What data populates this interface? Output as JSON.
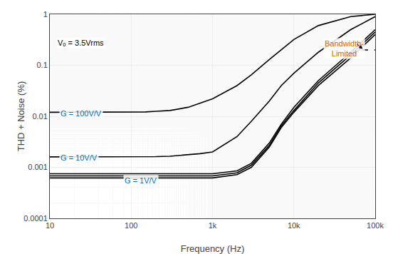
{
  "chart_data": {
    "type": "line",
    "log": true,
    "grid": true,
    "xlabel": "Frequency (Hz)",
    "ylabel": "THD + Noise (%)",
    "xlim": [
      10,
      100000
    ],
    "ylim": [
      0.0001,
      1
    ],
    "xticks": [
      10,
      100,
      {
        "value": 1000,
        "label": "1k"
      },
      {
        "value": 10000,
        "label": "10k"
      },
      {
        "value": 100000,
        "label": "100k"
      }
    ],
    "yticks": [
      0.0001,
      0.001,
      0.01,
      0.1,
      1
    ],
    "series": [
      {
        "color": "#000000",
        "line_style": "solid",
        "x": [
          10,
          20,
          30,
          50,
          70,
          100,
          150,
          200,
          300,
          500,
          700,
          1000,
          2000,
          3000,
          5000,
          7000,
          10000,
          20000,
          50000,
          100000
        ],
        "values": [
          0.012,
          0.012,
          0.012,
          0.012,
          0.012,
          0.012,
          0.0122,
          0.0125,
          0.013,
          0.015,
          0.018,
          0.022,
          0.04,
          0.065,
          0.13,
          0.2,
          0.32,
          0.6,
          0.9,
          1.0
        ]
      },
      {
        "color": "#000000",
        "line_style": "solid",
        "x": [
          10,
          20,
          50,
          100,
          200,
          300,
          500,
          700,
          1000,
          2000,
          3000,
          5000,
          7000,
          10000,
          20000,
          50000,
          100000
        ],
        "values": [
          0.0016,
          0.0016,
          0.0016,
          0.0016,
          0.00162,
          0.00165,
          0.00175,
          0.00185,
          0.002,
          0.004,
          0.008,
          0.02,
          0.04,
          0.07,
          0.18,
          0.5,
          0.9
        ]
      },
      {
        "color": "#000000",
        "line_style": "solid",
        "x": [
          10,
          50,
          100,
          200,
          300,
          500,
          700,
          1000,
          2000,
          3000,
          5000,
          7000,
          10000,
          20000,
          50000,
          100000
        ],
        "values": [
          0.00075,
          0.00075,
          0.00075,
          0.00075,
          0.00075,
          0.00075,
          0.00075,
          0.00075,
          0.00085,
          0.0012,
          0.003,
          0.007,
          0.015,
          0.05,
          0.18,
          0.5
        ]
      },
      {
        "color": "#000000",
        "line_style": "solid",
        "x": [
          10,
          50,
          100,
          200,
          300,
          500,
          700,
          1000,
          2000,
          3000,
          5000,
          7000,
          10000,
          20000,
          50000,
          100000
        ],
        "values": [
          0.00068,
          0.00068,
          0.00068,
          0.00068,
          0.00068,
          0.00068,
          0.00068,
          0.00068,
          0.00078,
          0.0011,
          0.0027,
          0.0065,
          0.013,
          0.045,
          0.16,
          0.45
        ]
      },
      {
        "color": "#000000",
        "line_style": "solid",
        "x": [
          10,
          50,
          100,
          200,
          300,
          500,
          700,
          1000,
          2000,
          3000,
          5000,
          7000,
          10000,
          20000,
          50000,
          100000
        ],
        "values": [
          0.00062,
          0.00062,
          0.00062,
          0.00062,
          0.00062,
          0.00062,
          0.00062,
          0.00062,
          0.00072,
          0.001,
          0.0025,
          0.006,
          0.012,
          0.04,
          0.14,
          0.4
        ]
      },
      {
        "color": "#000000",
        "line_style": "dashed",
        "x": [
          68000,
          100000
        ],
        "values": [
          0.2,
          0.2
        ]
      }
    ],
    "annotations": [
      {
        "text": "Vₒ = 3.5Vrms",
        "x": 12,
        "y": 0.28,
        "color": "#000000"
      },
      {
        "text": "Bandwidth-\nLimited",
        "x": 42000,
        "y": 0.35,
        "color": "#CC6600"
      },
      {
        "text": "G = 100V/V",
        "x": 13,
        "y": 0.0115,
        "color": "#0070C0"
      },
      {
        "text": "G = 10V/V",
        "x": 13,
        "y": 0.00155,
        "color": "#0070C0"
      },
      {
        "text": "G = 1V/V",
        "x": 80,
        "y": 0.00056,
        "color": "#0070C0"
      }
    ],
    "arrows": [
      {
        "x": 70000,
        "y": 0.21,
        "from_x": 58000,
        "from_y": 0.27
      }
    ]
  }
}
